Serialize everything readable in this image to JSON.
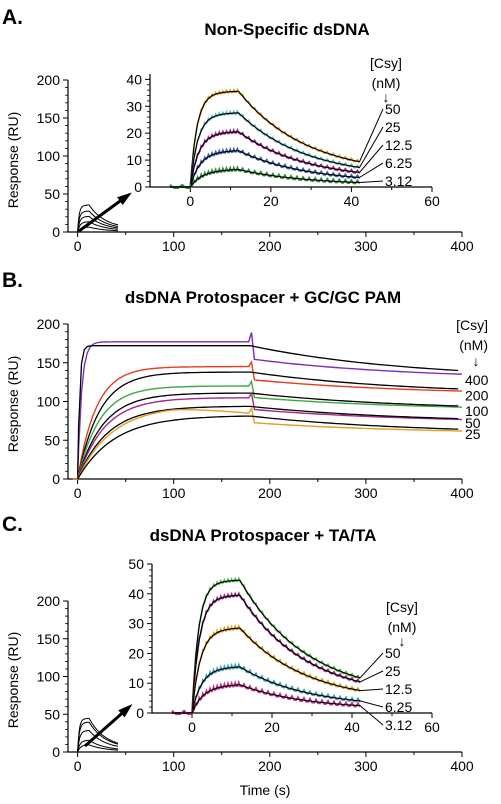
{
  "chart_data": [
    {
      "panel": "A.",
      "type": "line",
      "title": "Non-Specific dsDNA",
      "xlabel": "",
      "ylabel": "Response (RU)",
      "xlim": [
        -10,
        400
      ],
      "ylim": [
        0,
        200
      ],
      "xticks": [
        0,
        100,
        200,
        300,
        400
      ],
      "yticks": [
        0,
        50,
        100,
        150,
        200
      ],
      "legend_title": [
        "[Csy]",
        "(nM)"
      ],
      "legend_arrow": "↓",
      "concentrations": [
        "50",
        "25",
        "12.5",
        "6.25",
        "3.12"
      ],
      "series_colors": [
        "#e0a020",
        "#5bc0c0",
        "#a0288c",
        "#3a5fb0",
        "#2e8b3a"
      ],
      "injection_end_s": 12,
      "end_s": 42,
      "rmax": [
        35,
        27,
        20,
        13,
        6
      ],
      "inset": {
        "xlim": [
          -10,
          60
        ],
        "ylim": [
          0,
          42
        ],
        "xticks": [
          0,
          20,
          40,
          60
        ],
        "yticks": [
          0,
          10,
          20,
          30,
          40
        ]
      }
    },
    {
      "panel": "B.",
      "type": "line",
      "title": "dsDNA Protospacer + GC/GC PAM",
      "xlabel": "",
      "ylabel": "Response (RU)",
      "xlim": [
        -10,
        400
      ],
      "ylim": [
        0,
        200
      ],
      "xticks": [
        0,
        100,
        200,
        300,
        400
      ],
      "yticks": [
        0,
        50,
        100,
        150,
        200
      ],
      "legend_title": [
        "[Csy]",
        "(nM)"
      ],
      "legend_arrow": "↓",
      "concentrations": [
        "400",
        "200",
        "100",
        "50",
        "25"
      ],
      "series_colors": [
        "#7b2fbf",
        "#e04020",
        "#40a840",
        "#a0288c",
        "#e0a020"
      ],
      "injection_end_s": 180,
      "end_s": 400,
      "rmax": [
        177,
        145,
        120,
        105,
        95
      ],
      "end_values": [
        128,
        108,
        88,
        72,
        58
      ]
    },
    {
      "panel": "C.",
      "type": "line",
      "title": "dsDNA Protospacer + TA/TA",
      "xlabel": "Time (s)",
      "ylabel": "Response (RU)",
      "xlim": [
        -10,
        400
      ],
      "ylim": [
        0,
        200
      ],
      "xticks": [
        0,
        100,
        200,
        300,
        400
      ],
      "yticks": [
        0,
        50,
        100,
        150,
        200
      ],
      "legend_title": [
        "[Csy]",
        "(nM)"
      ],
      "legend_arrow": "↓",
      "concentrations": [
        "50",
        "25",
        "12.5",
        "6.25",
        "3.12"
      ],
      "series_colors": [
        "#50b848",
        "#a0288c",
        "#e0a020",
        "#3aa0b0",
        "#c03090"
      ],
      "injection_end_s": 12,
      "end_s": 42,
      "rmax": [
        44,
        39,
        28,
        15,
        9
      ],
      "inset": {
        "xlim": [
          -10,
          60
        ],
        "ylim": [
          0,
          50
        ],
        "xticks": [
          0,
          20,
          40,
          60
        ],
        "yticks": [
          0,
          10,
          20,
          30,
          40,
          50
        ]
      }
    }
  ]
}
